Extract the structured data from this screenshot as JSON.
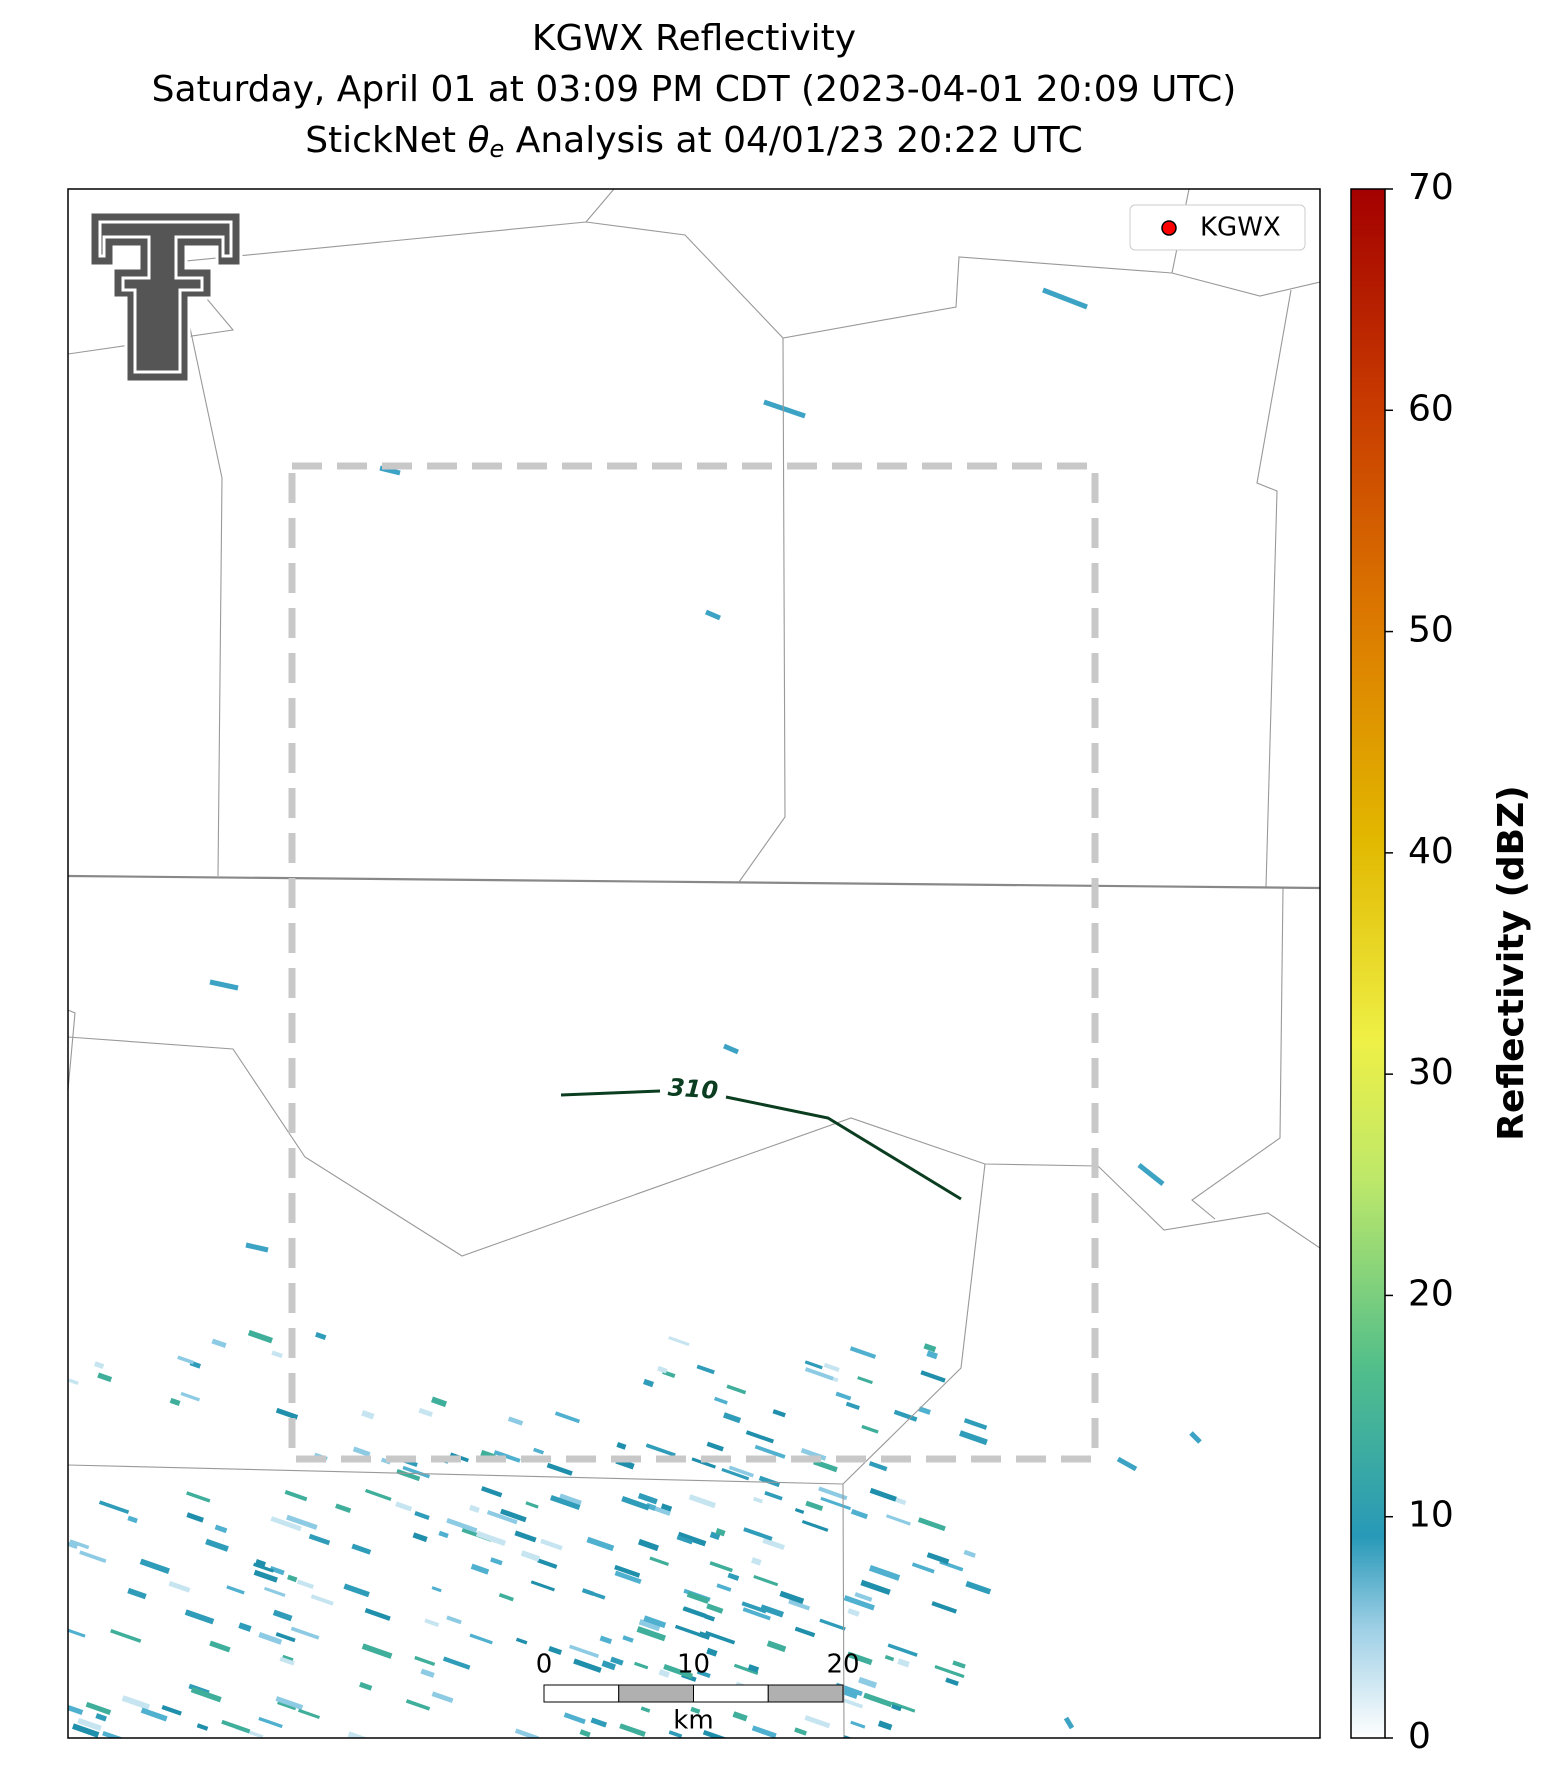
{
  "chart_data": {
    "type": "radar-map",
    "title": [
      "KGWX Reflectivity",
      "Saturday, April 01 at 03:09 PM CDT (2023-04-01 20:09 UTC)"
    ],
    "subtitle": {
      "prefix": "StickNet",
      "symbol": "θ",
      "subscript": "e",
      "suffix": "Analysis at 04/01/23 20:22 UTC"
    },
    "colorbar": {
      "label": "Reflectivity (dBZ)",
      "lim": [
        0,
        70
      ],
      "ticks": [
        0,
        10,
        20,
        30,
        40,
        50,
        60,
        70
      ]
    },
    "legend": {
      "label": "KGWX",
      "color": "#ff0000",
      "corner": "upper right"
    },
    "contour": {
      "label": "310",
      "color": "#0b3d20"
    },
    "scale_bar": {
      "lim": [
        0,
        20
      ],
      "ticks": [
        0,
        10,
        20
      ],
      "unit": "km"
    }
  }
}
